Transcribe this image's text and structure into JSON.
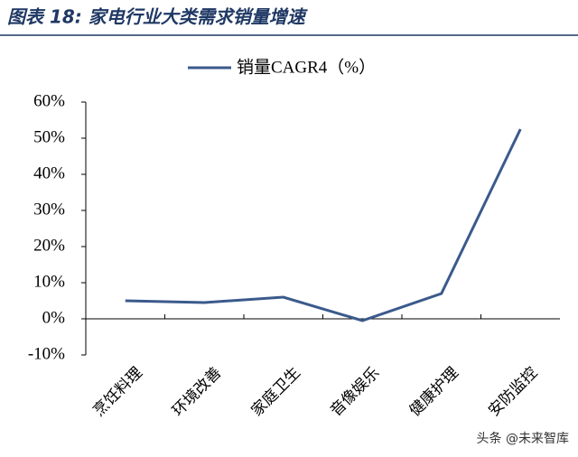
{
  "chart_data": {
    "type": "line",
    "title": "图表 18:  家电行业大类需求销量增速",
    "categories": [
      "烹饪料理",
      "环境改善",
      "家庭卫生",
      "音像娱乐",
      "健康护理",
      "安防监控"
    ],
    "series": [
      {
        "name": "销量CAGR4（%）",
        "color": "#3b5a8c",
        "values": [
          5,
          4.5,
          6,
          -0.5,
          7,
          52.5
        ]
      }
    ],
    "ylim": [
      -10,
      60
    ],
    "yticks": [
      {
        "value": -10,
        "label": "-10%"
      },
      {
        "value": 0,
        "label": "0%"
      },
      {
        "value": 10,
        "label": "10%"
      },
      {
        "value": 20,
        "label": "20%"
      },
      {
        "value": 30,
        "label": "30%"
      },
      {
        "value": 40,
        "label": "40%"
      },
      {
        "value": 50,
        "label": "50%"
      },
      {
        "value": 60,
        "label": "60%"
      }
    ],
    "legend": "top",
    "watermark": "头条 @未来智库"
  }
}
